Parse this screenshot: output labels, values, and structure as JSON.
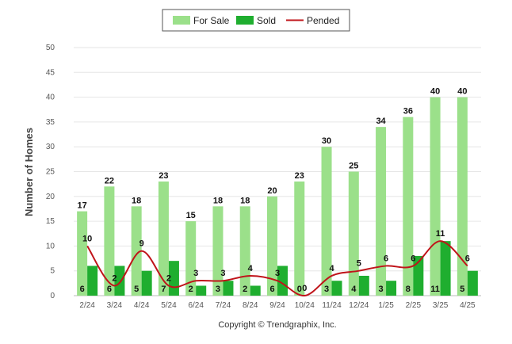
{
  "chart_data": {
    "type": "bar",
    "categories": [
      "2/24",
      "3/24",
      "4/24",
      "5/24",
      "6/24",
      "7/24",
      "8/24",
      "9/24",
      "10/24",
      "11/24",
      "12/24",
      "1/25",
      "2/25",
      "3/25",
      "4/25"
    ],
    "series": [
      {
        "name": "For Sale",
        "type": "bar",
        "color": "#9be08a",
        "values": [
          17,
          22,
          18,
          23,
          15,
          18,
          18,
          20,
          23,
          30,
          25,
          34,
          36,
          40,
          40
        ]
      },
      {
        "name": "Sold",
        "type": "bar",
        "color": "#1fae2f",
        "values": [
          6,
          6,
          5,
          7,
          2,
          3,
          2,
          6,
          0,
          3,
          4,
          3,
          8,
          11,
          5
        ]
      },
      {
        "name": "Pended",
        "type": "line",
        "color": "#c0141a",
        "values": [
          10,
          2,
          9,
          2,
          3,
          3,
          4,
          3,
          0,
          4,
          5,
          6,
          6,
          11,
          6
        ]
      }
    ],
    "ylabel": "Number of Homes",
    "xlabel": "",
    "ylim": [
      0,
      50
    ],
    "yticks": [
      0,
      5,
      10,
      15,
      20,
      25,
      30,
      35,
      40,
      45,
      50
    ],
    "grid": true,
    "legend_position": "top-center"
  },
  "footer": {
    "copyright": "Copyright © Trendgraphix, Inc."
  }
}
